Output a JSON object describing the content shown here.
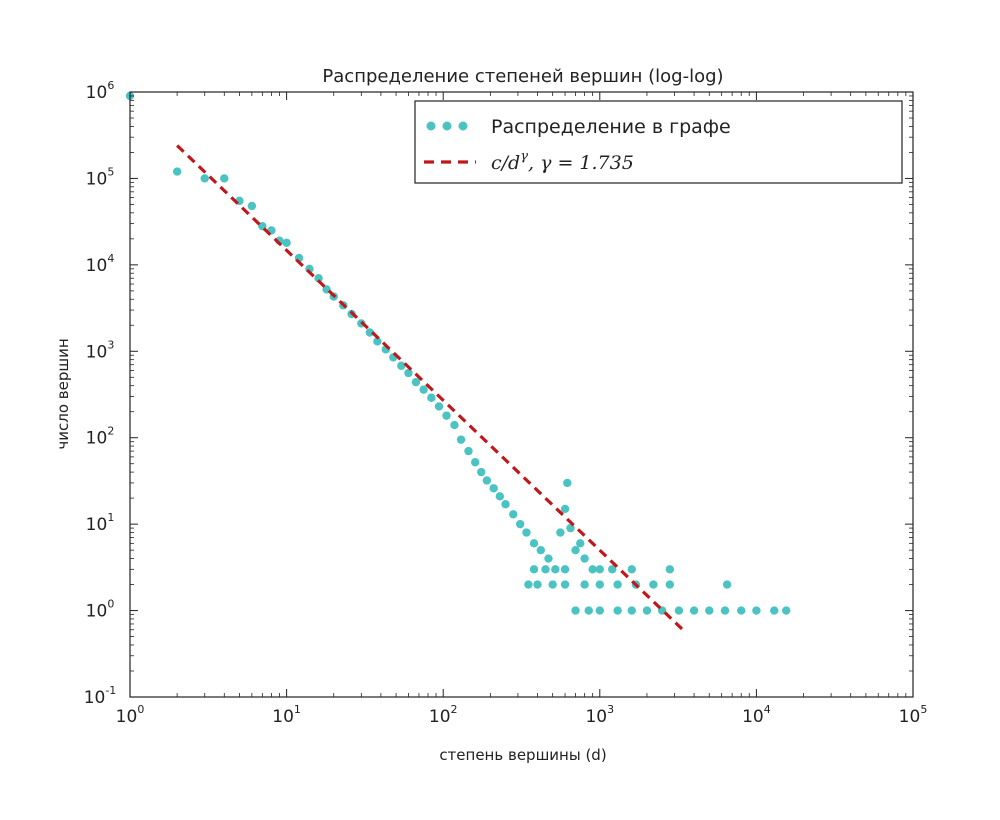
{
  "chart_data": {
    "type": "scatter",
    "title": "Распределение степеней вершин (log-log)",
    "xlabel": "степень вершины (d)",
    "ylabel": "число вершин",
    "xscale": "log",
    "yscale": "log",
    "xlim": [
      1,
      100000
    ],
    "ylim": [
      0.1,
      1000000
    ],
    "xticks": [
      {
        "value": 1,
        "base": "10",
        "exp": "0"
      },
      {
        "value": 10,
        "base": "10",
        "exp": "1"
      },
      {
        "value": 100,
        "base": "10",
        "exp": "2"
      },
      {
        "value": 1000,
        "base": "10",
        "exp": "3"
      },
      {
        "value": 10000,
        "base": "10",
        "exp": "4"
      },
      {
        "value": 100000,
        "base": "10",
        "exp": "5"
      }
    ],
    "yticks": [
      {
        "value": 0.1,
        "base": "10",
        "exp": "-1"
      },
      {
        "value": 1,
        "base": "10",
        "exp": "0"
      },
      {
        "value": 10,
        "base": "10",
        "exp": "1"
      },
      {
        "value": 100,
        "base": "10",
        "exp": "2"
      },
      {
        "value": 1000,
        "base": "10",
        "exp": "3"
      },
      {
        "value": 10000,
        "base": "10",
        "exp": "4"
      },
      {
        "value": 100000,
        "base": "10",
        "exp": "5"
      },
      {
        "value": 1000000,
        "base": "10",
        "exp": "6"
      }
    ],
    "grid": false,
    "legend_position": "top-right",
    "series": [
      {
        "name": "Распределение в графе",
        "kind": "scatter",
        "color": "#4cc3c3",
        "points": [
          [
            1,
            900000
          ],
          [
            2,
            120000
          ],
          [
            3,
            100000
          ],
          [
            4,
            100000
          ],
          [
            5,
            55000
          ],
          [
            6,
            48000
          ],
          [
            7,
            28000
          ],
          [
            8,
            25000
          ],
          [
            9,
            19000
          ],
          [
            10,
            18000
          ],
          [
            12,
            12000
          ],
          [
            14,
            9000
          ],
          [
            16,
            7000
          ],
          [
            18,
            5200
          ],
          [
            20,
            4300
          ],
          [
            23,
            3400
          ],
          [
            26,
            2700
          ],
          [
            30,
            2100
          ],
          [
            34,
            1650
          ],
          [
            38,
            1300
          ],
          [
            43,
            1050
          ],
          [
            48,
            850
          ],
          [
            54,
            680
          ],
          [
            60,
            560
          ],
          [
            67,
            440
          ],
          [
            75,
            360
          ],
          [
            84,
            290
          ],
          [
            94,
            230
          ],
          [
            105,
            180
          ],
          [
            118,
            140
          ],
          [
            130,
            95
          ],
          [
            145,
            70
          ],
          [
            160,
            52
          ],
          [
            175,
            40
          ],
          [
            190,
            32
          ],
          [
            210,
            26
          ],
          [
            230,
            21
          ],
          [
            250,
            17
          ],
          [
            280,
            13
          ],
          [
            310,
            10
          ],
          [
            340,
            8
          ],
          [
            380,
            6
          ],
          [
            420,
            5
          ],
          [
            470,
            4
          ],
          [
            520,
            3
          ],
          [
            560,
            8
          ],
          [
            600,
            15
          ],
          [
            620,
            30
          ],
          [
            650,
            9
          ],
          [
            700,
            5
          ],
          [
            750,
            6
          ],
          [
            800,
            4
          ],
          [
            900,
            3
          ],
          [
            1000,
            3
          ],
          [
            350,
            2
          ],
          [
            400,
            2
          ],
          [
            500,
            2
          ],
          [
            600,
            2
          ],
          [
            800,
            2
          ],
          [
            1000,
            2
          ],
          [
            1300,
            2
          ],
          [
            1700,
            2
          ],
          [
            2200,
            2
          ],
          [
            2800,
            2
          ],
          [
            380,
            3
          ],
          [
            450,
            3
          ],
          [
            600,
            3
          ],
          [
            1200,
            3
          ],
          [
            1600,
            3
          ],
          [
            2800,
            3
          ],
          [
            700,
            1
          ],
          [
            850,
            1
          ],
          [
            1000,
            1
          ],
          [
            1300,
            1
          ],
          [
            1600,
            1
          ],
          [
            2000,
            1
          ],
          [
            2500,
            1
          ],
          [
            3200,
            1
          ],
          [
            4000,
            1
          ],
          [
            5000,
            1
          ],
          [
            6300,
            1
          ],
          [
            8000,
            1
          ],
          [
            10000,
            1
          ],
          [
            13000,
            1
          ],
          [
            15500,
            1
          ],
          [
            6500,
            2
          ]
        ]
      },
      {
        "name": "c/d^γ, γ = 1.735",
        "kind": "line",
        "style": "dashed",
        "color": "#c0181a",
        "gamma": 1.735,
        "c": 800000,
        "x_range": [
          2,
          3500
        ]
      }
    ],
    "legend": {
      "scatter_label": "Распределение в графе",
      "line_label_prefix": "c/d",
      "line_label_sup": "γ",
      "line_label_suffix": ", γ = 1.735"
    }
  }
}
